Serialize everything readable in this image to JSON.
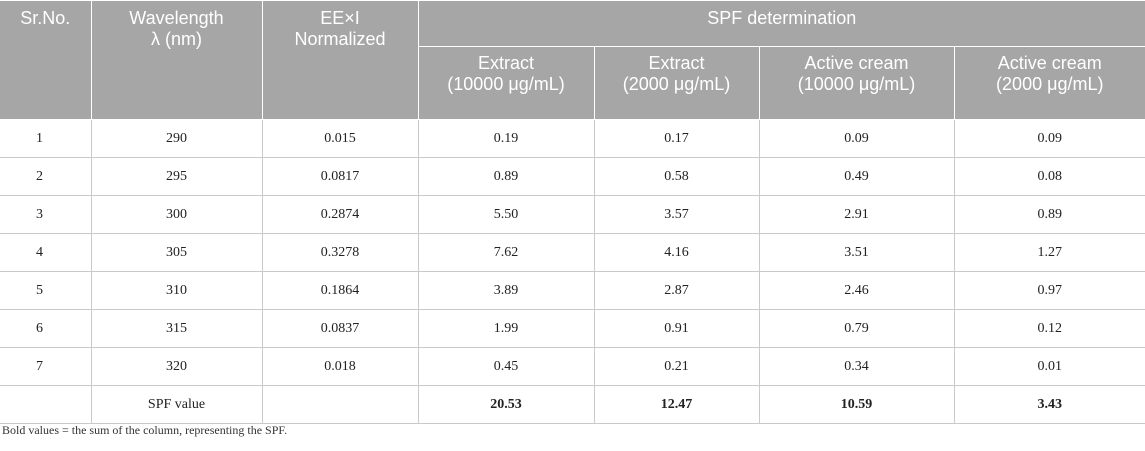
{
  "table": {
    "headers": {
      "sr_no": "Sr.No.",
      "wavelength": "Wavelength\nλ (nm)",
      "eexi": "EE×I\nNormalized",
      "spf_group": "SPF determination",
      "extract_10000": "Extract\n(10000 μg/mL)",
      "extract_2000": "Extract\n(2000 μg/mL)",
      "cream_10000": "Active cream\n(10000 μg/mL)",
      "cream_2000": "Active cream\n(2000 μg/mL)"
    },
    "rows": [
      {
        "sr": "1",
        "wl": "290",
        "eexi": "0.015",
        "e10000": "0.19",
        "e2000": "0.17",
        "c10000": "0.09",
        "c2000": "0.09"
      },
      {
        "sr": "2",
        "wl": "295",
        "eexi": "0.0817",
        "e10000": "0.89",
        "e2000": "0.58",
        "c10000": "0.49",
        "c2000": "0.08"
      },
      {
        "sr": "3",
        "wl": "300",
        "eexi": "0.2874",
        "e10000": "5.50",
        "e2000": "3.57",
        "c10000": "2.91",
        "c2000": "0.89"
      },
      {
        "sr": "4",
        "wl": "305",
        "eexi": "0.3278",
        "e10000": "7.62",
        "e2000": "4.16",
        "c10000": "3.51",
        "c2000": "1.27"
      },
      {
        "sr": "5",
        "wl": "310",
        "eexi": "0.1864",
        "e10000": "3.89",
        "e2000": "2.87",
        "c10000": "2.46",
        "c2000": "0.97"
      },
      {
        "sr": "6",
        "wl": "315",
        "eexi": "0.0837",
        "e10000": "1.99",
        "e2000": "0.91",
        "c10000": "0.79",
        "c2000": "0.12"
      },
      {
        "sr": "7",
        "wl": "320",
        "eexi": "0.018",
        "e10000": "0.45",
        "e2000": "0.21",
        "c10000": "0.34",
        "c2000": "0.01"
      }
    ],
    "total": {
      "label": "SPF value",
      "e10000": "20.53",
      "e2000": "12.47",
      "c10000": "10.59",
      "c2000": "3.43"
    }
  },
  "footnote": "Bold values = the sum of the column, representing the SPF.",
  "colors": {
    "header_bg": "#a6a6a6",
    "header_text": "#ffffff",
    "grid": "#c9c9c9"
  }
}
